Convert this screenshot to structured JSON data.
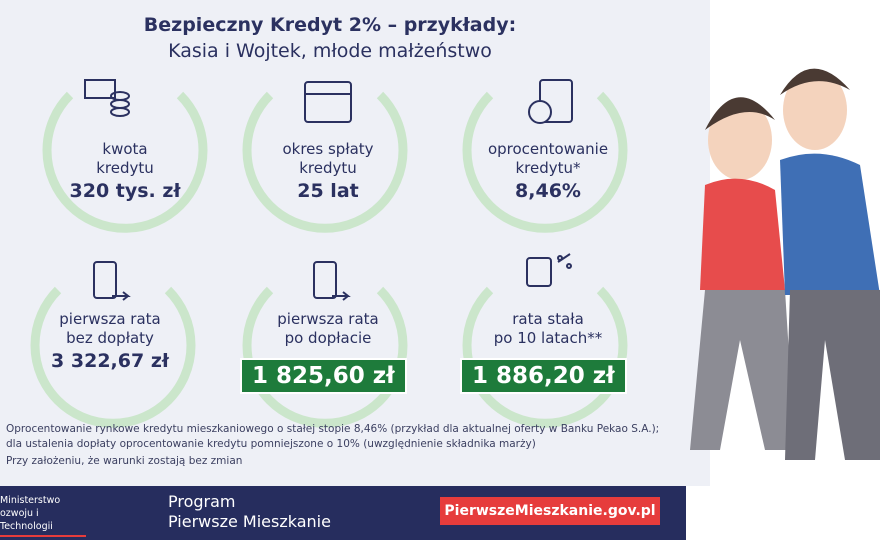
{
  "header": {
    "title": "Bezpieczny Kredyt 2% – przykłady:",
    "subtitle": "Kasia i Wojtek, młode małżeństwo"
  },
  "items": [
    {
      "label": "kwota\nkredytu",
      "value": "320 tys. zł"
    },
    {
      "label": "okres spłaty\nkredytu",
      "value": "25 lat"
    },
    {
      "label": "oprocentowanie\nkredytu*",
      "value": "8,46%"
    },
    {
      "label": "pierwsza rata\nbez dopłaty",
      "value": "3 322,67 zł"
    },
    {
      "label": "pierwsza rata\npo dopłacie",
      "value": "1 825,60 zł"
    },
    {
      "label": "rata stała\npo 10 latach**",
      "value": "1 886,20 zł"
    }
  ],
  "footnotes": [
    "Oprocentowanie rynkowe kredytu mieszkaniowego o stałej stopie 8,46% (przykład dla aktualnej oferty w Banku Pekao S.A.);",
    "dla ustalenia dopłaty oprocentowanie kredytu pomniejszone o 10% (uwzględnienie składnika marży)",
    "Przy założeniu, że warunki zostają bez zmian"
  ],
  "footer": {
    "ministry_line1": "Ministerstwo",
    "ministry_line2": "ozwoju i Technologii",
    "program_line1": "Program",
    "program_line2": "Pierwsze Mieszkanie",
    "link": "PierwszeMieszkanie.gov.pl"
  }
}
